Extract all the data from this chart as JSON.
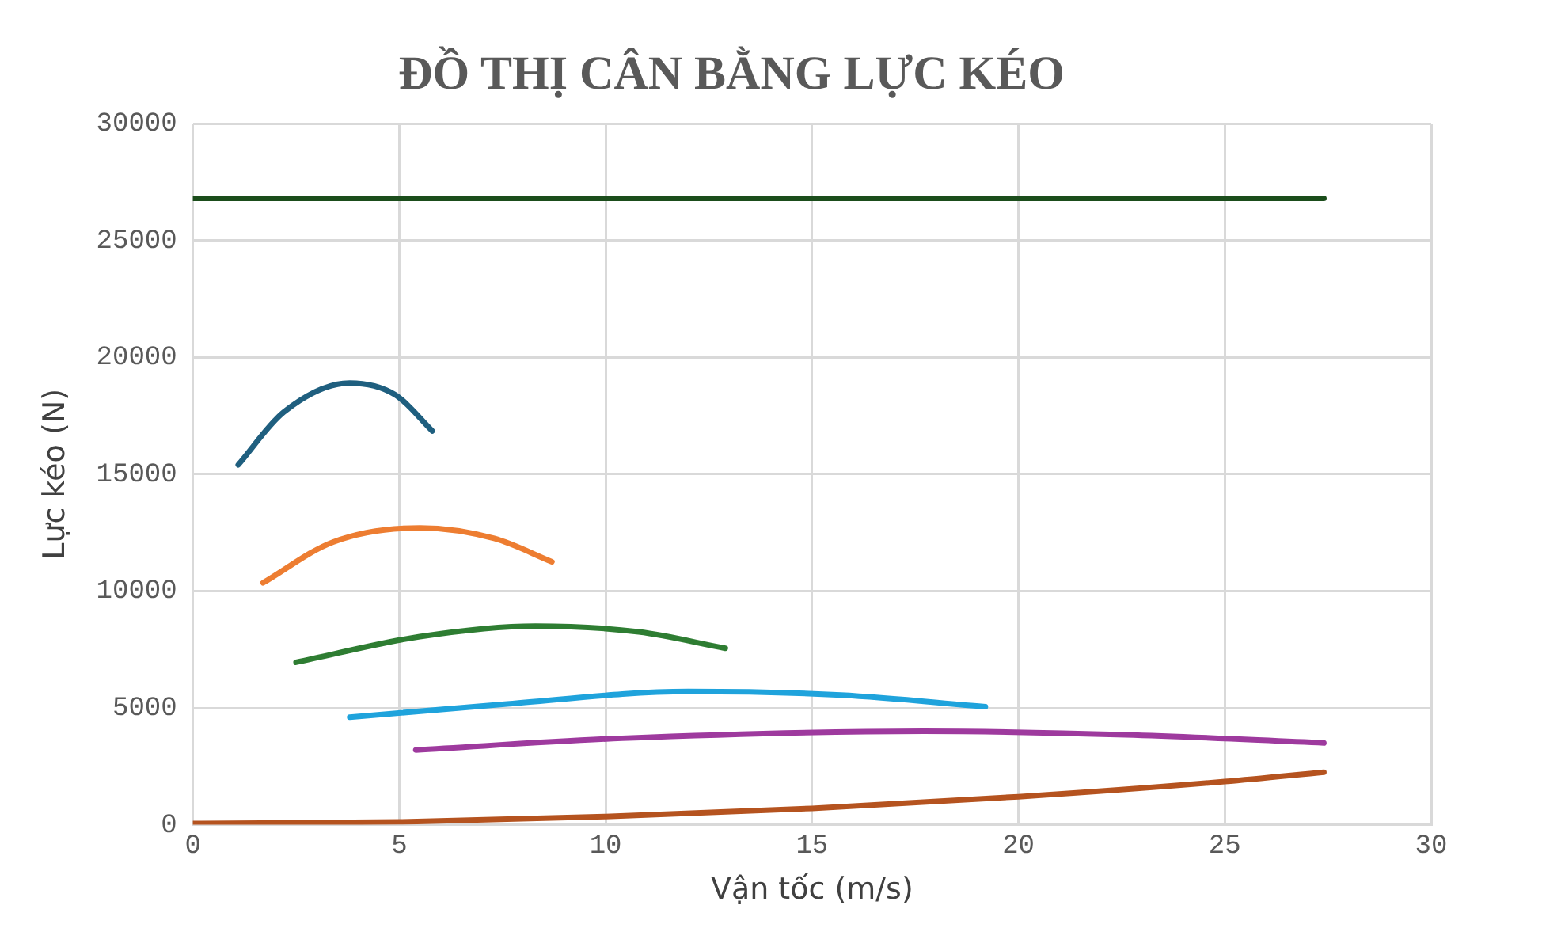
{
  "chart_data": {
    "type": "line",
    "title": "ĐỒ THỊ CÂN BẰNG LỰC KÉO",
    "xlabel": "Vận tốc (m/s)",
    "ylabel": "Lực kéo (N)",
    "xlim": [
      0,
      30
    ],
    "xticks": [
      0,
      5,
      10,
      15,
      20,
      25,
      30
    ],
    "ylim": [
      0,
      30000
    ],
    "yticks": [
      0,
      5000,
      10000,
      15000,
      20000,
      25000,
      30000
    ],
    "grid": true,
    "legend": false,
    "marker": "none",
    "line_style": "solid",
    "series": [
      {
        "color": "#1b4d1b",
        "x": [
          0,
          27.4
        ],
        "values": [
          26800,
          26800
        ]
      },
      {
        "color": "#1f5f7f",
        "x": [
          1.1,
          2.2,
          3.8,
          4.9,
          5.8
        ],
        "values": [
          15400,
          17650,
          18900,
          18400,
          16850
        ]
      },
      {
        "color": "#ed7d31",
        "x": [
          1.7,
          3.4,
          5.5,
          7.3,
          8.7
        ],
        "values": [
          10350,
          12100,
          12700,
          12250,
          11250
        ]
      },
      {
        "color": "#2e7d32",
        "x": [
          2.5,
          5.5,
          8.3,
          10.8,
          12.9
        ],
        "values": [
          6950,
          8050,
          8500,
          8250,
          7550
        ]
      },
      {
        "color": "#1fa3dc",
        "x": [
          3.8,
          7.5,
          12,
          15.7,
          19.2
        ],
        "values": [
          4600,
          5150,
          5700,
          5550,
          5050
        ]
      },
      {
        "color": "#9e3a9e",
        "x": [
          5.4,
          10.4,
          17.7,
          22.6,
          27.4
        ],
        "values": [
          3200,
          3700,
          4000,
          3850,
          3500
        ]
      },
      {
        "color": "#b5531f",
        "x": [
          0,
          5,
          10,
          15,
          20,
          25,
          27.4
        ],
        "values": [
          50,
          120,
          350,
          700,
          1200,
          1850,
          2250
        ]
      }
    ]
  }
}
